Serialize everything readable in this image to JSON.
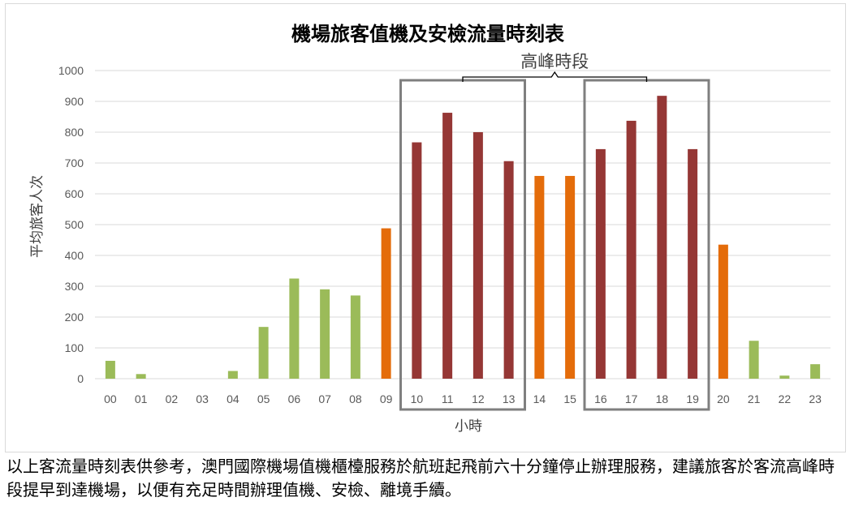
{
  "chart_data": {
    "type": "bar",
    "title": "機場旅客值機及安檢流量時刻表",
    "xlabel": "小時",
    "ylabel": "平均旅客人次",
    "ylim": [
      0,
      1000
    ],
    "yticks": [
      0,
      100,
      200,
      300,
      400,
      500,
      600,
      700,
      800,
      900,
      1000
    ],
    "grid": true,
    "categories": [
      "00",
      "01",
      "02",
      "03",
      "04",
      "05",
      "06",
      "07",
      "08",
      "09",
      "10",
      "11",
      "12",
      "13",
      "14",
      "15",
      "16",
      "17",
      "18",
      "19",
      "20",
      "21",
      "22",
      "23"
    ],
    "values": [
      58,
      15,
      0,
      0,
      25,
      168,
      325,
      290,
      270,
      488,
      767,
      863,
      800,
      706,
      658,
      658,
      745,
      837,
      918,
      745,
      435,
      123,
      10,
      47
    ],
    "levels": [
      "low",
      "low",
      "low",
      "low",
      "low",
      "low",
      "low",
      "low",
      "low",
      "medium",
      "peak",
      "peak",
      "peak",
      "peak",
      "medium",
      "medium",
      "peak",
      "peak",
      "peak",
      "peak",
      "medium",
      "low",
      "low",
      "low"
    ],
    "colors": {
      "low": "#9bbb59",
      "medium": "#e46c0a",
      "peak": "#953735",
      "highlight_box": "#7f7f7f",
      "grid": "#d9d9d9"
    },
    "annotation": {
      "text": "高峰時段",
      "ranges": [
        [
          "10",
          "13"
        ],
        [
          "16",
          "19"
        ]
      ]
    }
  },
  "caption": "以上客流量時刻表供參考，澳門國際機場值機櫃檯服務於航班起飛前六十分鐘停止辦理服務，建議旅客於客流高峰時段提早到達機場，以便有充足時間辦理值機、安檢、離境手續。"
}
